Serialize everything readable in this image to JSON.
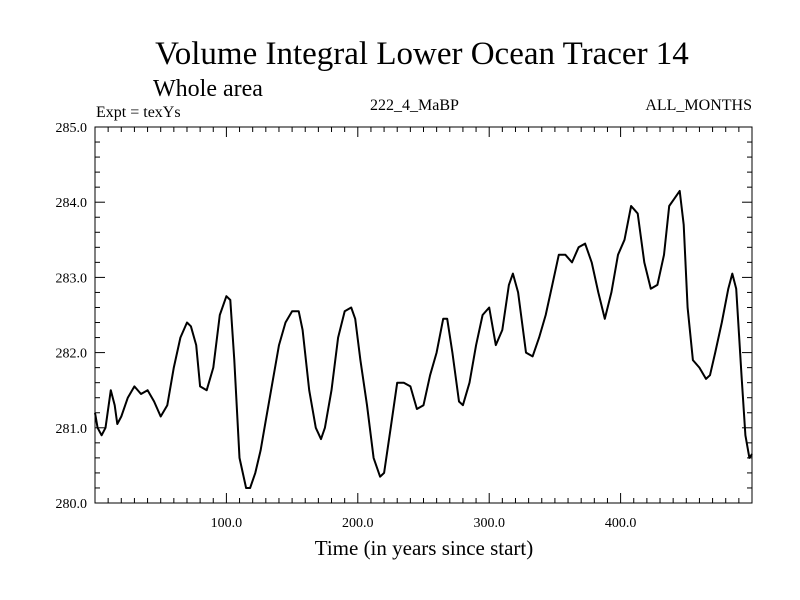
{
  "chart_data": {
    "type": "line",
    "title": "Volume Integral Lower Ocean Tracer 14",
    "subtitle": "Whole area",
    "experiment": "Expt = texYs",
    "run_label": "222_4_MaBP",
    "period_label": "ALL_MONTHS",
    "xlabel": "Time (in years since start)",
    "ylabel": "",
    "xlim": [
      0,
      500
    ],
    "ylim": [
      280.0,
      285.0
    ],
    "x_ticks": [
      "100.0",
      "200.0",
      "300.0",
      "400.0"
    ],
    "y_ticks": [
      "280.0",
      "281.0",
      "282.0",
      "283.0",
      "284.0",
      "285.0"
    ],
    "grid": false,
    "series": [
      {
        "x": [
          0,
          2,
          5,
          8,
          12,
          15,
          17,
          20,
          25,
          30,
          35,
          40,
          45,
          50,
          55,
          60,
          65,
          70,
          73,
          77,
          80,
          85,
          90,
          95,
          100,
          103,
          106,
          110,
          115,
          118,
          122,
          126,
          130,
          135,
          140,
          145,
          150,
          155,
          158,
          163,
          168,
          172,
          175,
          180,
          185,
          190,
          195,
          198,
          202,
          207,
          212,
          217,
          220,
          225,
          230,
          235,
          240,
          245,
          250,
          255,
          260,
          265,
          268,
          272,
          277,
          280,
          285,
          290,
          295,
          300,
          305,
          310,
          315,
          318,
          322,
          328,
          333,
          338,
          343,
          348,
          353,
          358,
          363,
          368,
          373,
          378,
          383,
          388,
          393,
          398,
          403,
          408,
          413,
          418,
          423,
          428,
          433,
          437,
          441,
          445,
          448,
          451,
          455,
          460,
          465,
          468,
          472,
          477,
          482,
          485,
          488,
          492,
          495,
          498,
          500
        ],
        "y": [
          281.2,
          281.0,
          280.9,
          281.0,
          281.5,
          281.3,
          281.05,
          281.15,
          281.4,
          281.55,
          281.45,
          281.5,
          281.35,
          281.15,
          281.3,
          281.8,
          282.2,
          282.4,
          282.35,
          282.1,
          281.55,
          281.5,
          281.8,
          282.5,
          282.75,
          282.7,
          281.9,
          280.6,
          280.2,
          280.2,
          280.4,
          280.7,
          281.1,
          281.6,
          282.1,
          282.4,
          282.55,
          282.55,
          282.3,
          281.5,
          281.0,
          280.85,
          281.0,
          281.5,
          282.2,
          282.55,
          282.6,
          282.45,
          281.9,
          281.3,
          280.6,
          280.35,
          280.4,
          281.0,
          281.6,
          281.6,
          281.55,
          281.25,
          281.3,
          281.7,
          282.0,
          282.45,
          282.45,
          282.0,
          281.35,
          281.3,
          281.6,
          282.1,
          282.5,
          282.6,
          282.1,
          282.3,
          282.9,
          283.05,
          282.8,
          282.0,
          281.95,
          282.2,
          282.5,
          282.9,
          283.3,
          283.3,
          283.2,
          283.4,
          283.45,
          283.2,
          282.8,
          282.45,
          282.8,
          283.3,
          283.5,
          283.95,
          283.85,
          283.2,
          282.85,
          282.9,
          283.3,
          283.95,
          284.05,
          284.15,
          283.7,
          282.6,
          281.9,
          281.8,
          281.65,
          281.7,
          282.0,
          282.4,
          282.85,
          283.05,
          282.85,
          281.7,
          280.9,
          280.6,
          280.65
        ]
      }
    ]
  }
}
